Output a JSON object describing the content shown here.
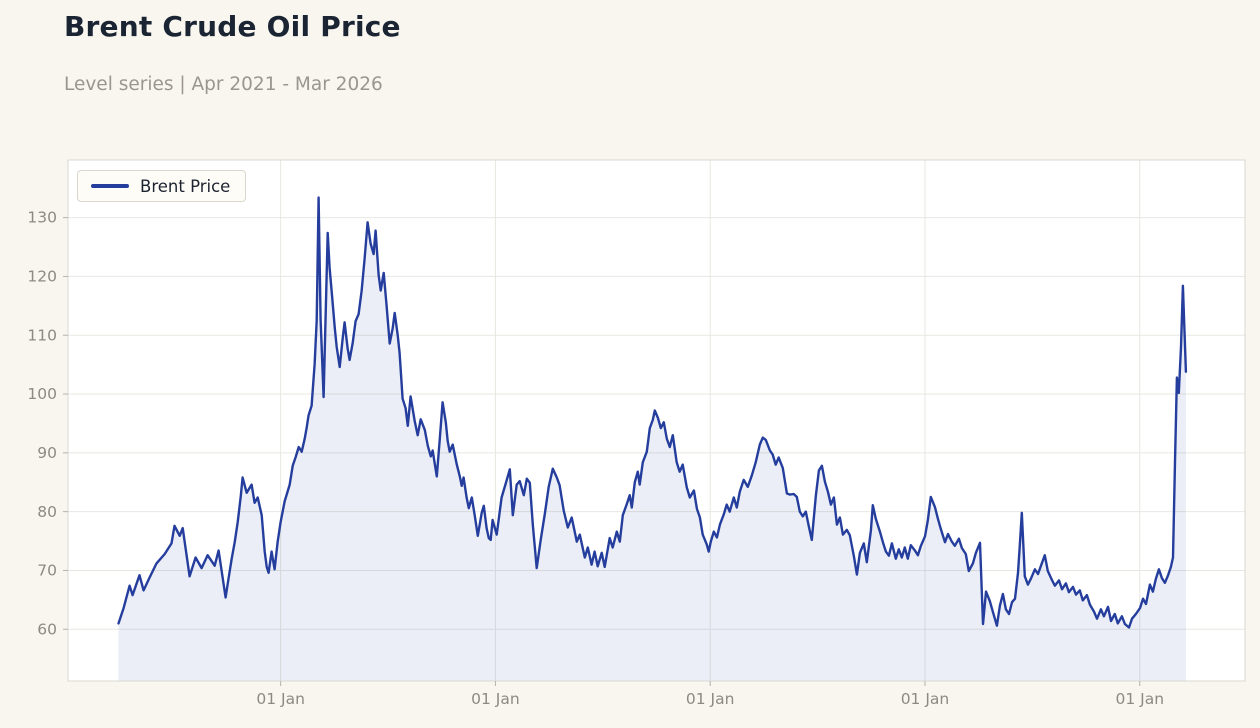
{
  "header": {
    "title": "Brent Crude Oil Price",
    "subtitle": "Level series | Apr 2021 - Mar 2026"
  },
  "legend": {
    "label": "Brent Price"
  },
  "colors": {
    "page_background": "#f9f6ef",
    "plot_background": "#ffffff",
    "line": "#253e9d",
    "area_fill": "rgba(38,62,153,0.09)",
    "grid": "#e7e7e2",
    "frame": "#d9d8d1",
    "tick": "#b3b2ab",
    "tick_text": "#8b8a84",
    "title_text": "#1a2433",
    "subtitle_text": "#9a968d"
  },
  "chart_data": {
    "type": "line",
    "title": "Brent Crude Oil Price",
    "subtitle": "Level series | Apr 2021 - Mar 2026",
    "series_name": "Brent Price",
    "legend_position": "upper-left",
    "grid": true,
    "x_axis": {
      "unit": "decimal-year",
      "min": 2021.01,
      "max": 2026.49,
      "ticks": [
        {
          "t": 2022,
          "label": "01 Jan"
        },
        {
          "t": 2023,
          "label": "01 Jan"
        },
        {
          "t": 2024,
          "label": "01 Jan"
        },
        {
          "t": 2025,
          "label": "01 Jan"
        },
        {
          "t": 2026,
          "label": "01 Jan"
        }
      ]
    },
    "y_axis": {
      "min": 51.2,
      "max": 139.8,
      "ticks": [
        60,
        70,
        80,
        90,
        100,
        110,
        120,
        130
      ]
    },
    "points": [
      [
        2021.245,
        61.0
      ],
      [
        2021.269,
        63.6
      ],
      [
        2021.297,
        67.4
      ],
      [
        2021.311,
        65.8
      ],
      [
        2021.343,
        69.2
      ],
      [
        2021.362,
        66.6
      ],
      [
        2021.39,
        68.8
      ],
      [
        2021.422,
        71.2
      ],
      [
        2021.46,
        72.8
      ],
      [
        2021.492,
        74.6
      ],
      [
        2021.506,
        77.6
      ],
      [
        2021.53,
        75.9
      ],
      [
        2021.544,
        77.2
      ],
      [
        2021.576,
        69.0
      ],
      [
        2021.604,
        72.2
      ],
      [
        2021.632,
        70.4
      ],
      [
        2021.66,
        72.6
      ],
      [
        2021.693,
        70.8
      ],
      [
        2021.711,
        73.4
      ],
      [
        2021.744,
        65.4
      ],
      [
        2021.758,
        68.8
      ],
      [
        2021.772,
        72.0
      ],
      [
        2021.786,
        74.8
      ],
      [
        2021.8,
        78.2
      ],
      [
        2021.814,
        82.5
      ],
      [
        2021.823,
        85.8
      ],
      [
        2021.842,
        83.2
      ],
      [
        2021.865,
        84.6
      ],
      [
        2021.879,
        81.5
      ],
      [
        2021.893,
        82.4
      ],
      [
        2021.912,
        79.4
      ],
      [
        2021.926,
        73.2
      ],
      [
        2021.935,
        70.6
      ],
      [
        2021.944,
        69.6
      ],
      [
        2021.958,
        73.2
      ],
      [
        2021.972,
        70.2
      ],
      [
        2021.986,
        74.8
      ],
      [
        2022.0,
        78.2
      ],
      [
        2022.019,
        81.8
      ],
      [
        2022.042,
        84.6
      ],
      [
        2022.056,
        87.8
      ],
      [
        2022.07,
        89.3
      ],
      [
        2022.084,
        91.0
      ],
      [
        2022.098,
        90.2
      ],
      [
        2022.112,
        92.4
      ],
      [
        2022.121,
        94.2
      ],
      [
        2022.13,
        96.4
      ],
      [
        2022.144,
        98.0
      ],
      [
        2022.158,
        105.0
      ],
      [
        2022.168,
        112.5
      ],
      [
        2022.177,
        133.4
      ],
      [
        2022.186,
        112.7
      ],
      [
        2022.2,
        99.5
      ],
      [
        2022.219,
        127.4
      ],
      [
        2022.228,
        121.5
      ],
      [
        2022.238,
        117.2
      ],
      [
        2022.252,
        111.2
      ],
      [
        2022.261,
        108.0
      ],
      [
        2022.275,
        104.6
      ],
      [
        2022.289,
        109.5
      ],
      [
        2022.298,
        112.2
      ],
      [
        2022.312,
        107.8
      ],
      [
        2022.321,
        105.8
      ],
      [
        2022.335,
        108.6
      ],
      [
        2022.349,
        112.4
      ],
      [
        2022.363,
        113.6
      ],
      [
        2022.377,
        117.5
      ],
      [
        2022.391,
        123.0
      ],
      [
        2022.405,
        129.2
      ],
      [
        2022.419,
        125.6
      ],
      [
        2022.433,
        123.8
      ],
      [
        2022.442,
        127.8
      ],
      [
        2022.456,
        120.3
      ],
      [
        2022.466,
        117.6
      ],
      [
        2022.48,
        120.6
      ],
      [
        2022.494,
        114.8
      ],
      [
        2022.508,
        108.6
      ],
      [
        2022.522,
        111.2
      ],
      [
        2022.531,
        113.8
      ],
      [
        2022.545,
        110.0
      ],
      [
        2022.554,
        107.0
      ],
      [
        2022.568,
        99.2
      ],
      [
        2022.582,
        97.6
      ],
      [
        2022.592,
        94.6
      ],
      [
        2022.605,
        99.6
      ],
      [
        2022.624,
        95.4
      ],
      [
        2022.638,
        93.0
      ],
      [
        2022.652,
        95.7
      ],
      [
        2022.671,
        93.9
      ],
      [
        2022.685,
        91.2
      ],
      [
        2022.699,
        89.4
      ],
      [
        2022.708,
        90.4
      ],
      [
        2022.717,
        88.3
      ],
      [
        2022.727,
        86.0
      ],
      [
        2022.741,
        92.4
      ],
      [
        2022.754,
        98.6
      ],
      [
        2022.769,
        95.2
      ],
      [
        2022.778,
        92.0
      ],
      [
        2022.787,
        90.2
      ],
      [
        2022.801,
        91.4
      ],
      [
        2022.82,
        88.0
      ],
      [
        2022.834,
        86.0
      ],
      [
        2022.843,
        84.4
      ],
      [
        2022.852,
        85.8
      ],
      [
        2022.866,
        82.4
      ],
      [
        2022.876,
        80.6
      ],
      [
        2022.89,
        82.4
      ],
      [
        2022.904,
        79.3
      ],
      [
        2022.918,
        75.9
      ],
      [
        2022.936,
        79.8
      ],
      [
        2022.946,
        81.0
      ],
      [
        2022.959,
        77.2
      ],
      [
        2022.969,
        75.5
      ],
      [
        2022.978,
        75.2
      ],
      [
        2022.987,
        78.6
      ],
      [
        2023.006,
        76.1
      ],
      [
        2023.029,
        82.4
      ],
      [
        2023.053,
        85.4
      ],
      [
        2023.067,
        87.2
      ],
      [
        2023.081,
        79.4
      ],
      [
        2023.099,
        84.6
      ],
      [
        2023.113,
        85.2
      ],
      [
        2023.132,
        82.8
      ],
      [
        2023.146,
        85.6
      ],
      [
        2023.16,
        84.9
      ],
      [
        2023.174,
        77.8
      ],
      [
        2023.192,
        70.4
      ],
      [
        2023.211,
        75.2
      ],
      [
        2023.23,
        79.6
      ],
      [
        2023.248,
        84.2
      ],
      [
        2023.267,
        87.3
      ],
      [
        2023.286,
        85.8
      ],
      [
        2023.299,
        84.5
      ],
      [
        2023.318,
        80.2
      ],
      [
        2023.337,
        77.3
      ],
      [
        2023.355,
        79.0
      ],
      [
        2023.379,
        74.9
      ],
      [
        2023.393,
        76.1
      ],
      [
        2023.416,
        72.2
      ],
      [
        2023.43,
        73.9
      ],
      [
        2023.448,
        71.0
      ],
      [
        2023.462,
        73.2
      ],
      [
        2023.476,
        70.7
      ],
      [
        2023.495,
        73.0
      ],
      [
        2023.509,
        70.6
      ],
      [
        2023.532,
        75.5
      ],
      [
        2023.546,
        73.9
      ],
      [
        2023.565,
        76.6
      ],
      [
        2023.579,
        74.9
      ],
      [
        2023.593,
        79.4
      ],
      [
        2023.611,
        81.2
      ],
      [
        2023.625,
        82.8
      ],
      [
        2023.635,
        80.7
      ],
      [
        2023.649,
        85.0
      ],
      [
        2023.663,
        86.8
      ],
      [
        2023.672,
        84.6
      ],
      [
        2023.686,
        88.4
      ],
      [
        2023.705,
        90.2
      ],
      [
        2023.719,
        94.2
      ],
      [
        2023.733,
        95.6
      ],
      [
        2023.742,
        97.2
      ],
      [
        2023.756,
        96.0
      ],
      [
        2023.77,
        94.2
      ],
      [
        2023.784,
        95.2
      ],
      [
        2023.798,
        92.4
      ],
      [
        2023.812,
        91.0
      ],
      [
        2023.826,
        93.0
      ],
      [
        2023.844,
        88.4
      ],
      [
        2023.858,
        86.8
      ],
      [
        2023.872,
        88.0
      ],
      [
        2023.891,
        84.1
      ],
      [
        2023.905,
        82.4
      ],
      [
        2023.924,
        83.6
      ],
      [
        2023.938,
        80.5
      ],
      [
        2023.952,
        79.0
      ],
      [
        2023.965,
        76.1
      ],
      [
        2023.984,
        74.4
      ],
      [
        2023.993,
        73.2
      ],
      [
        2024.003,
        74.9
      ],
      [
        2024.017,
        76.6
      ],
      [
        2024.031,
        75.6
      ],
      [
        2024.045,
        77.8
      ],
      [
        2024.063,
        79.5
      ],
      [
        2024.077,
        81.2
      ],
      [
        2024.091,
        80.0
      ],
      [
        2024.11,
        82.4
      ],
      [
        2024.124,
        80.7
      ],
      [
        2024.138,
        83.4
      ],
      [
        2024.156,
        85.4
      ],
      [
        2024.175,
        84.2
      ],
      [
        2024.194,
        86.2
      ],
      [
        2024.212,
        88.4
      ],
      [
        2024.231,
        91.4
      ],
      [
        2024.245,
        92.6
      ],
      [
        2024.259,
        92.2
      ],
      [
        2024.278,
        90.4
      ],
      [
        2024.291,
        89.7
      ],
      [
        2024.305,
        88.0
      ],
      [
        2024.319,
        89.2
      ],
      [
        2024.338,
        87.4
      ],
      [
        2024.357,
        83.1
      ],
      [
        2024.371,
        82.9
      ],
      [
        2024.389,
        83.0
      ],
      [
        2024.403,
        82.5
      ],
      [
        2024.417,
        80.0
      ],
      [
        2024.431,
        79.2
      ],
      [
        2024.445,
        80.0
      ],
      [
        2024.459,
        77.5
      ],
      [
        2024.473,
        75.2
      ],
      [
        2024.492,
        82.8
      ],
      [
        2024.506,
        87.0
      ],
      [
        2024.52,
        87.8
      ],
      [
        2024.534,
        85.1
      ],
      [
        2024.548,
        83.4
      ],
      [
        2024.562,
        81.2
      ],
      [
        2024.576,
        82.4
      ],
      [
        2024.59,
        77.8
      ],
      [
        2024.604,
        79.0
      ],
      [
        2024.618,
        76.1
      ],
      [
        2024.636,
        76.9
      ],
      [
        2024.65,
        76.0
      ],
      [
        2024.669,
        72.4
      ],
      [
        2024.683,
        69.3
      ],
      [
        2024.697,
        73.0
      ],
      [
        2024.715,
        74.6
      ],
      [
        2024.729,
        71.4
      ],
      [
        2024.748,
        76.8
      ],
      [
        2024.757,
        81.1
      ],
      [
        2024.771,
        78.8
      ],
      [
        2024.79,
        76.6
      ],
      [
        2024.804,
        74.8
      ],
      [
        2024.818,
        73.2
      ],
      [
        2024.832,
        72.5
      ],
      [
        2024.846,
        74.6
      ],
      [
        2024.864,
        72.0
      ],
      [
        2024.878,
        73.6
      ],
      [
        2024.892,
        72.2
      ],
      [
        2024.906,
        73.9
      ],
      [
        2024.92,
        72.0
      ],
      [
        2024.934,
        74.3
      ],
      [
        2024.953,
        73.4
      ],
      [
        2024.967,
        72.6
      ],
      [
        2024.981,
        74.2
      ],
      [
        2025.0,
        75.8
      ],
      [
        2025.013,
        78.5
      ],
      [
        2025.027,
        82.5
      ],
      [
        2025.046,
        80.8
      ],
      [
        2025.06,
        78.8
      ],
      [
        2025.074,
        77.0
      ],
      [
        2025.093,
        74.8
      ],
      [
        2025.107,
        76.2
      ],
      [
        2025.125,
        74.9
      ],
      [
        2025.139,
        74.2
      ],
      [
        2025.158,
        75.4
      ],
      [
        2025.172,
        73.8
      ],
      [
        2025.19,
        72.8
      ],
      [
        2025.204,
        69.9
      ],
      [
        2025.223,
        71.2
      ],
      [
        2025.237,
        73.0
      ],
      [
        2025.256,
        74.7
      ],
      [
        2025.27,
        60.9
      ],
      [
        2025.284,
        66.4
      ],
      [
        2025.302,
        64.8
      ],
      [
        2025.316,
        63.0
      ],
      [
        2025.335,
        60.6
      ],
      [
        2025.349,
        64.0
      ],
      [
        2025.363,
        66.0
      ],
      [
        2025.377,
        63.4
      ],
      [
        2025.391,
        62.6
      ],
      [
        2025.405,
        64.6
      ],
      [
        2025.419,
        65.2
      ],
      [
        2025.433,
        69.6
      ],
      [
        2025.442,
        74.5
      ],
      [
        2025.451,
        79.8
      ],
      [
        2025.465,
        69.0
      ],
      [
        2025.479,
        67.6
      ],
      [
        2025.493,
        68.6
      ],
      [
        2025.512,
        70.2
      ],
      [
        2025.526,
        69.4
      ],
      [
        2025.54,
        70.8
      ],
      [
        2025.558,
        72.6
      ],
      [
        2025.572,
        69.9
      ],
      [
        2025.591,
        68.4
      ],
      [
        2025.605,
        67.4
      ],
      [
        2025.624,
        68.3
      ],
      [
        2025.638,
        66.8
      ],
      [
        2025.656,
        67.8
      ],
      [
        2025.67,
        66.3
      ],
      [
        2025.689,
        67.2
      ],
      [
        2025.703,
        65.9
      ],
      [
        2025.721,
        66.6
      ],
      [
        2025.735,
        64.9
      ],
      [
        2025.754,
        65.8
      ],
      [
        2025.768,
        64.2
      ],
      [
        2025.787,
        63.0
      ],
      [
        2025.801,
        61.8
      ],
      [
        2025.819,
        63.4
      ],
      [
        2025.833,
        62.2
      ],
      [
        2025.852,
        63.8
      ],
      [
        2025.866,
        61.4
      ],
      [
        2025.884,
        62.6
      ],
      [
        2025.898,
        61.0
      ],
      [
        2025.917,
        62.2
      ],
      [
        2025.931,
        60.9
      ],
      [
        2025.95,
        60.3
      ],
      [
        2025.964,
        61.8
      ],
      [
        2025.982,
        62.6
      ],
      [
        2026.001,
        63.6
      ],
      [
        2026.015,
        65.2
      ],
      [
        2026.029,
        64.3
      ],
      [
        2026.047,
        67.6
      ],
      [
        2026.061,
        66.4
      ],
      [
        2026.075,
        68.6
      ],
      [
        2026.089,
        70.2
      ],
      [
        2026.103,
        68.7
      ],
      [
        2026.117,
        67.9
      ],
      [
        2026.131,
        69.1
      ],
      [
        2026.145,
        70.6
      ],
      [
        2026.155,
        72.2
      ],
      [
        2026.164,
        88.5
      ],
      [
        2026.173,
        102.8
      ],
      [
        2026.182,
        100.2
      ],
      [
        2026.192,
        108.0
      ],
      [
        2026.201,
        118.4
      ],
      [
        2026.215,
        103.8
      ]
    ]
  }
}
